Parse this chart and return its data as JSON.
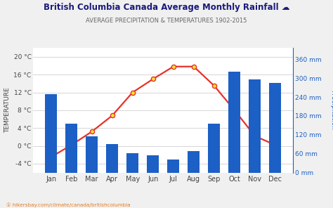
{
  "title": "British Columbia Canada Average Monthly Rainfall ☁",
  "subtitle": "AVERAGE PRECIPITATION & TEMPERATURES 1902-2015",
  "months": [
    "Jan",
    "Feb",
    "Mar",
    "Apr",
    "May",
    "Jun",
    "Jul",
    "Aug",
    "Sep",
    "Oct",
    "Nov",
    "Dec"
  ],
  "temperature": [
    -2.5,
    0.2,
    3.2,
    6.8,
    12.0,
    15.0,
    17.8,
    17.8,
    13.5,
    8.0,
    2.2,
    0.2
  ],
  "rainfall_mm": [
    248,
    155,
    115,
    90,
    62,
    55,
    42,
    68,
    155,
    320,
    295,
    285
  ],
  "bar_color": "#1c5fc5",
  "line_color": "#e8312a",
  "marker_face": "#f5e130",
  "marker_edge": "#e8312a",
  "temp_ylim": [
    -6,
    22
  ],
  "temp_yticks": [
    -4,
    0,
    4,
    8,
    12,
    16,
    20
  ],
  "rain_ylim": [
    0,
    396
  ],
  "rain_yticks": [
    0,
    60,
    120,
    180,
    240,
    300,
    360
  ],
  "ylabel_left": "TEMPERATURE",
  "ylabel_right": "Precipitation",
  "background_color": "#f0f0f0",
  "plot_bg_color": "#ffffff",
  "grid_color": "#d0d0d0",
  "title_color": "#1a1a7a",
  "subtitle_color": "#666666",
  "tick_color": "#444444",
  "right_tick_color": "#1c5fc5",
  "footer": "① hikersbay.com/climate/canada/britishcolumbia",
  "footer_color": "#e67e22"
}
